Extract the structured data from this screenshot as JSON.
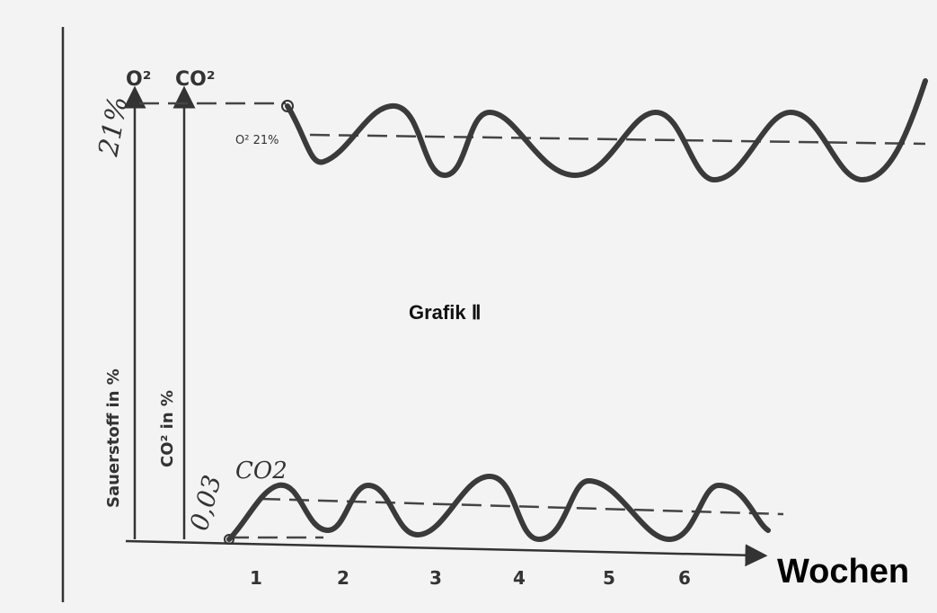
{
  "title": "Grafik Ⅱ",
  "axes": {
    "o2_label": "O²",
    "co2_label": "CO²",
    "o2_max": "21%",
    "o2_axis_title": "Sauerstoff in %",
    "co2_axis_title": "CO² in %",
    "x_axis_title": "Wochen",
    "x_ticks": [
      "1",
      "2",
      "3",
      "4",
      "5",
      "6"
    ]
  },
  "annotations": {
    "o2_mean": "O² 21%",
    "co2_curve": "CO2",
    "co2_mean": "0,03"
  }
}
